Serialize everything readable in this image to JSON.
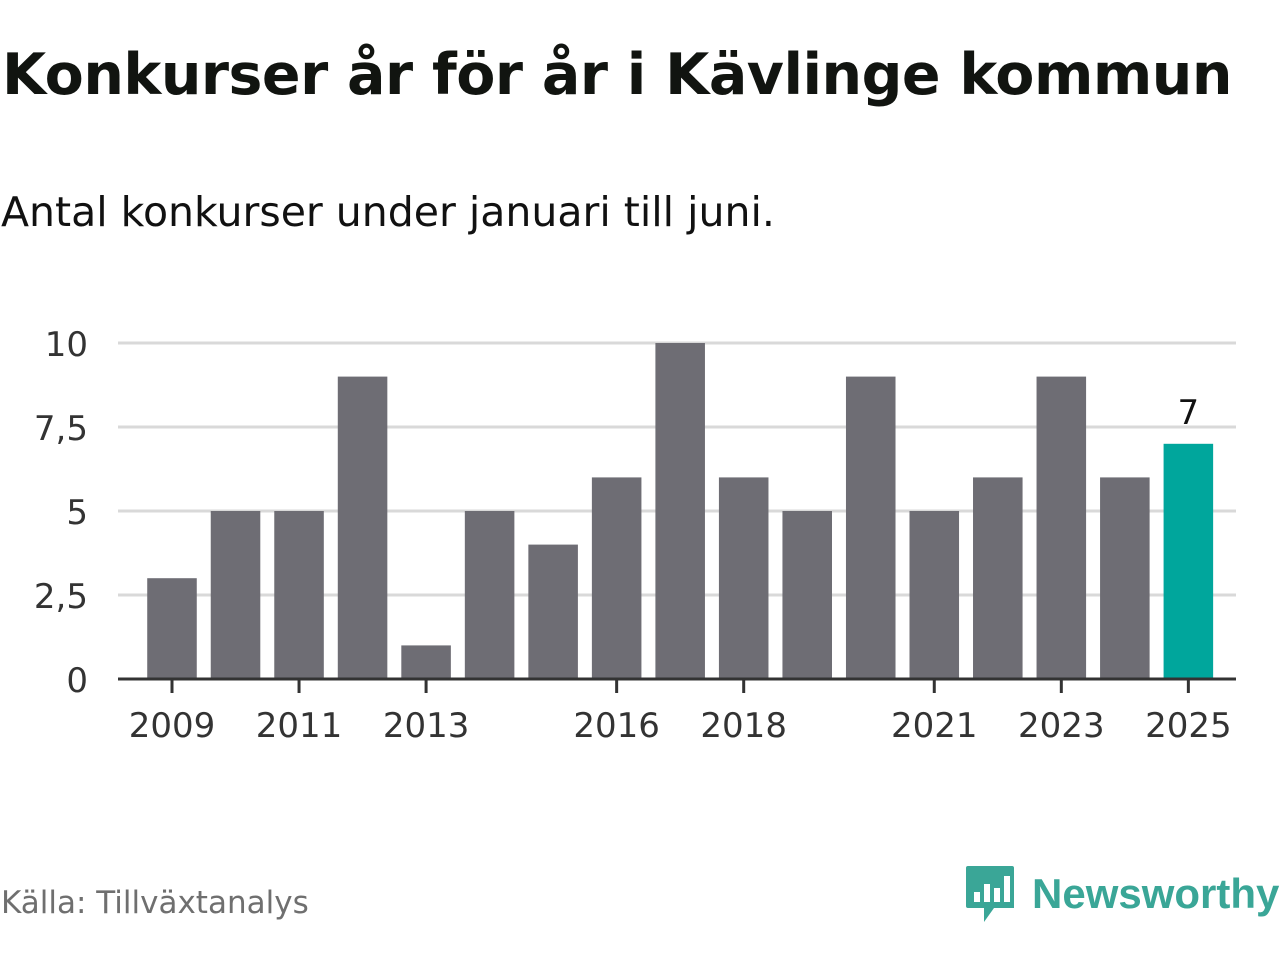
{
  "title": "Konkurser år för år i Kävlinge kommun",
  "subtitle": "Antal konkurser under januari till juni.",
  "source": "Källa: Tillväxtanalys",
  "brand": {
    "name": "Newsworthy",
    "color": "#3aa697",
    "icon": "newsworthy-logo-icon"
  },
  "colors": {
    "bar": "#6e6d74",
    "highlight": "#00a69c",
    "grid": "#d9d9d9",
    "axis": "#333333"
  },
  "chart_data": {
    "type": "bar",
    "categories": [
      "2009",
      "2010",
      "2011",
      "2012",
      "2013",
      "2014",
      "2015",
      "2016",
      "2017",
      "2018",
      "2019",
      "2020",
      "2021",
      "2022",
      "2023",
      "2024",
      "2025"
    ],
    "values": [
      3,
      5,
      5,
      9,
      1,
      5,
      4,
      6,
      10,
      6,
      5,
      9,
      5,
      6,
      9,
      6,
      7
    ],
    "highlight_index": 16,
    "highlight_label": "7",
    "x_tick_labels": [
      "2009",
      "2011",
      "2013",
      "2016",
      "2018",
      "2021",
      "2023",
      "2025"
    ],
    "y_ticks": [
      0,
      2.5,
      5,
      7.5,
      10
    ],
    "y_tick_labels": [
      "0",
      "2,5",
      "5",
      "7,5",
      "10"
    ],
    "ylim": [
      0,
      10
    ],
    "grid": true,
    "legend": "none"
  }
}
